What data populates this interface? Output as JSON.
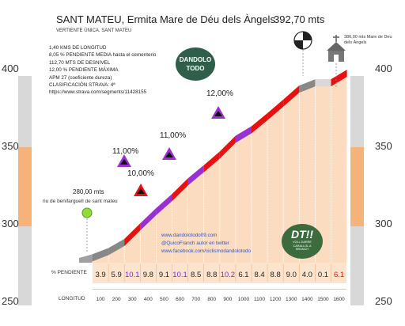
{
  "header": {
    "title": "SANT MATEU, Ermita Mare de Déu dels Àngels",
    "subtitle": "VERTIENTE ÚNICA. SANT MATEU",
    "summit_altitude": "392,70 mts",
    "summit_label": "386,00 mts Mare de Deu dels Àngels"
  },
  "info_lines": [
    "1,40 KMS DE LONGITUD",
    "8,05 % PENDIENTE MEDIA hasta el cementerio",
    "112,70 MTS DE DESNIVEL",
    "12,00 % PENDIENTE MÁXIMA",
    "APM 27 (coeficiente dureza)",
    "CLASIFICACIÓN STRAVA: 4ª",
    "https://www.strava.com/segments/11428155"
  ],
  "start": {
    "altitude": "280,00 mts",
    "name": "riu de benifarguell de sant mateu"
  },
  "links": [
    "www.dandolotodo09.com",
    "@QuicoFranch autor en twitter",
    "www.facebook.com/ciclismodandolotodo"
  ],
  "logos": {
    "left_text": "DANDOLO TODO",
    "right_main": "DT!!",
    "right_sub": "VOLL DARRE CARALLOL A BRANCH"
  },
  "row_labels": {
    "gradient": "% PENDIENTE",
    "distance": "LONGITUD"
  },
  "chart_data": {
    "type": "area",
    "title": "SANT MATEU, Ermita Mare de Déu dels Àngels",
    "xlabel": "LONGITUD",
    "ylabel": "",
    "ylim": [
      250,
      400
    ],
    "y_ticks": [
      "250",
      "300",
      "350",
      "400"
    ],
    "x_ticks": [
      "100",
      "200",
      "300",
      "400",
      "500",
      "600",
      "700",
      "800",
      "900",
      "1000",
      "1100",
      "1200",
      "1300",
      "1400",
      "1500",
      "1600"
    ],
    "gradients": [
      "3.9",
      "5.9",
      "10.1",
      "9.8",
      "9.1",
      "10.1",
      "8.5",
      "8.8",
      "10.2",
      "6.1",
      "8.4",
      "8.8",
      "9.0",
      "4.0",
      "0.1",
      "6.1"
    ],
    "gradient_values": [
      3.9,
      5.9,
      10.1,
      9.8,
      9.1,
      10.1,
      8.5,
      8.8,
      10.2,
      6.1,
      8.4,
      8.8,
      9.0,
      4.0,
      0.1,
      6.1
    ],
    "peak_annotations": [
      "11,00%",
      "10,00%",
      "11,00%",
      "12,00%"
    ],
    "legend": "none"
  }
}
